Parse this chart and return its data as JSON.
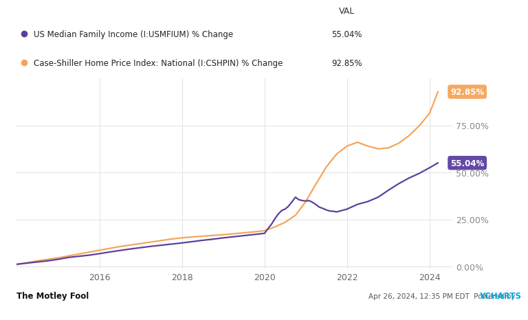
{
  "legend_entries": [
    {
      "label": "US Median Family Income (I:USMFIUM) % Change",
      "color": "#5b3fa0",
      "val": "55.04%"
    },
    {
      "label": "Case-Shiller Home Price Index: National (I:CSHPIN) % Change",
      "color": "#f5a55a",
      "val": "92.85%"
    }
  ],
  "val_header": "VAL",
  "xlim_start": 2014.0,
  "xlim_end": 2024.55,
  "ylim_min": -0.015,
  "ylim_max": 1.0,
  "yticks": [
    0.0,
    0.25,
    0.5,
    0.75
  ],
  "ytick_labels": [
    "0.00%",
    "25.00%",
    "50.00%",
    "75.00%"
  ],
  "xticks": [
    2016,
    2018,
    2020,
    2022,
    2024
  ],
  "xtick_labels": [
    "2016",
    "2018",
    "2020",
    "2022",
    "2024"
  ],
  "background_color": "#ffffff",
  "plot_bg_color": "#ffffff",
  "grid_color": "#e5e5e5",
  "annotation_income_text": "55.04%",
  "annotation_income_color": "#5b3fa0",
  "annotation_home_text": "92.85%",
  "annotation_home_color": "#f5a55a",
  "footer_left": "The Motley Fool",
  "footer_right": "Apr 26, 2024, 12:35 PM EDT  Powered by ",
  "footer_right_bold": "YCHARTS",
  "footer_right_bold_color": "#00a8e0",
  "income_x": [
    2014.0,
    2014.25,
    2014.5,
    2014.75,
    2015.0,
    2015.25,
    2015.5,
    2015.75,
    2016.0,
    2016.25,
    2016.5,
    2016.75,
    2017.0,
    2017.25,
    2017.5,
    2017.75,
    2018.0,
    2018.25,
    2018.5,
    2018.75,
    2019.0,
    2019.25,
    2019.5,
    2019.75,
    2020.0,
    2020.08,
    2020.17,
    2020.25,
    2020.33,
    2020.42,
    2020.5,
    2020.58,
    2020.67,
    2020.75,
    2020.83,
    2020.92,
    2021.0,
    2021.08,
    2021.17,
    2021.25,
    2021.33,
    2021.42,
    2021.5,
    2021.58,
    2021.67,
    2021.75,
    2022.0,
    2022.25,
    2022.5,
    2022.75,
    2023.0,
    2023.25,
    2023.5,
    2023.75,
    2024.0,
    2024.2
  ],
  "income_y": [
    0.012,
    0.018,
    0.024,
    0.03,
    0.038,
    0.048,
    0.054,
    0.06,
    0.068,
    0.077,
    0.085,
    0.093,
    0.1,
    0.107,
    0.113,
    0.119,
    0.125,
    0.132,
    0.139,
    0.145,
    0.152,
    0.158,
    0.164,
    0.17,
    0.176,
    0.2,
    0.225,
    0.253,
    0.278,
    0.298,
    0.305,
    0.32,
    0.345,
    0.368,
    0.355,
    0.35,
    0.348,
    0.35,
    0.34,
    0.328,
    0.315,
    0.308,
    0.3,
    0.295,
    0.293,
    0.29,
    0.305,
    0.33,
    0.345,
    0.368,
    0.405,
    0.44,
    0.47,
    0.495,
    0.525,
    0.5504
  ],
  "home_x": [
    2014.0,
    2014.25,
    2014.5,
    2014.75,
    2015.0,
    2015.25,
    2015.5,
    2015.75,
    2016.0,
    2016.25,
    2016.5,
    2016.75,
    2017.0,
    2017.25,
    2017.5,
    2017.75,
    2018.0,
    2018.25,
    2018.5,
    2018.75,
    2019.0,
    2019.25,
    2019.5,
    2019.75,
    2020.0,
    2020.25,
    2020.5,
    2020.75,
    2021.0,
    2021.25,
    2021.5,
    2021.75,
    2022.0,
    2022.25,
    2022.5,
    2022.75,
    2023.0,
    2023.25,
    2023.5,
    2023.75,
    2024.0,
    2024.2
  ],
  "home_y": [
    0.01,
    0.02,
    0.03,
    0.038,
    0.046,
    0.056,
    0.066,
    0.076,
    0.086,
    0.096,
    0.106,
    0.114,
    0.122,
    0.13,
    0.138,
    0.146,
    0.152,
    0.157,
    0.161,
    0.165,
    0.169,
    0.174,
    0.179,
    0.184,
    0.19,
    0.21,
    0.235,
    0.272,
    0.345,
    0.44,
    0.53,
    0.598,
    0.64,
    0.66,
    0.64,
    0.625,
    0.63,
    0.655,
    0.695,
    0.748,
    0.815,
    0.9285
  ]
}
